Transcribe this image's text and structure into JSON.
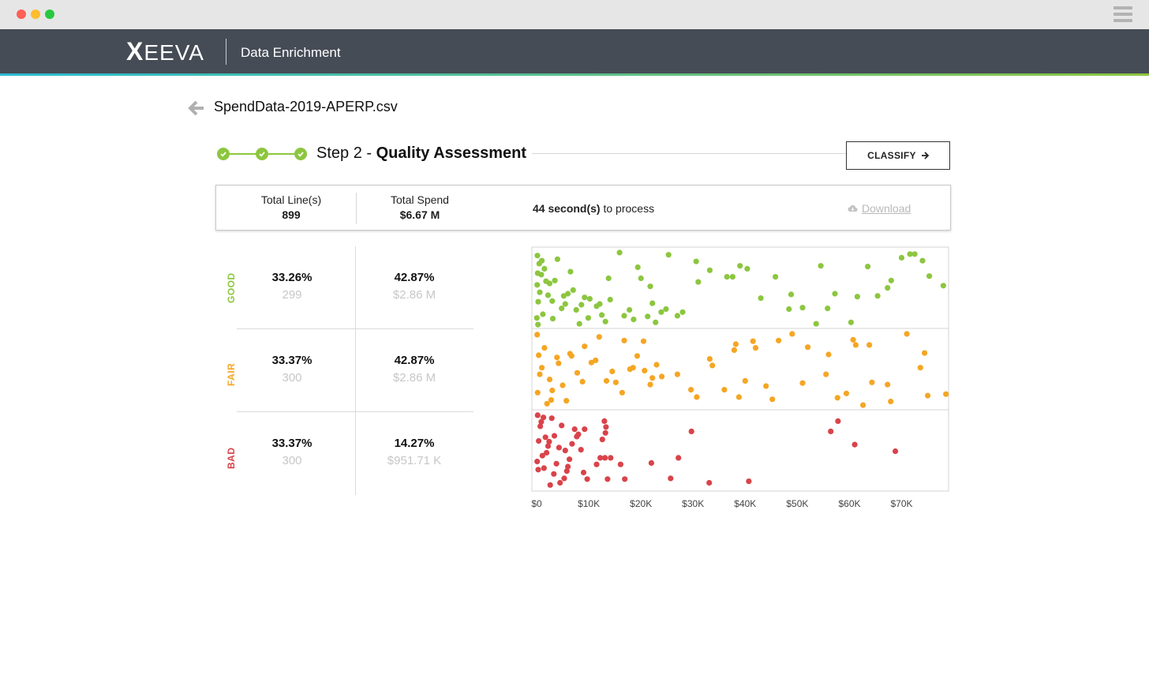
{
  "window": {
    "menu_icon": "hamburger-icon"
  },
  "header": {
    "brand": "XEEVA",
    "title": "Data Enrichment"
  },
  "file": {
    "name": "SpendData-2019-APERP.csv"
  },
  "step": {
    "prefix": "Step 2 - ",
    "name": "Quality Assessment",
    "completed_steps": 3
  },
  "actions": {
    "classify_label": "CLASSIFY"
  },
  "summary": {
    "total_lines_label": "Total Line(s)",
    "total_lines_value": "899",
    "total_spend_label": "Total Spend",
    "total_spend_value": "$6.67 M",
    "process_bold": "44 second(s)",
    "process_rest": " to process",
    "download_label": "Download"
  },
  "quality": [
    {
      "label": "GOOD",
      "color": "#8cc63f",
      "pct_lines": "33.26%",
      "count": "299",
      "pct_spend": "42.87%",
      "spend": "$2.86 M"
    },
    {
      "label": "FAIR",
      "color": "#f5a623",
      "pct_lines": "33.37%",
      "count": "300",
      "pct_spend": "42.87%",
      "spend": "$2.86 M"
    },
    {
      "label": "BAD",
      "color": "#d9434a",
      "pct_lines": "33.37%",
      "count": "300",
      "pct_spend": "14.27%",
      "spend": "$951.71 K"
    }
  ],
  "chart_data": {
    "type": "scatter",
    "x_ticks": [
      "$0",
      "$10K",
      "$20K",
      "$30K",
      "$40K",
      "$50K",
      "$60K",
      "$70K"
    ],
    "xlim": [
      0,
      79000
    ],
    "grid": true,
    "series": [
      {
        "group": "GOOD",
        "color": "#8cc63f",
        "x": [
          36500,
          15900,
          13800,
          6000,
          4800,
          8200,
          12500,
          5200,
          14100,
          20000,
          21800,
          19400,
          25300,
          30600,
          31000,
          33200,
          37600,
          39000,
          40400,
          43000,
          45800,
          48800,
          48400,
          51000,
          53600,
          55800,
          57200,
          60300,
          61500,
          63500,
          67300,
          68000,
          70000,
          71600,
          72500,
          74000,
          75300,
          78000,
          65400,
          54500,
          28000,
          27000,
          24800,
          23900,
          22200,
          11500,
          10200,
          9200,
          8600,
          7600,
          4000,
          3000,
          2200,
          1800,
          1200,
          900,
          500,
          300,
          200,
          150,
          100,
          50,
          1500,
          2500,
          3500,
          5500,
          6500,
          7000,
          12100,
          17800,
          16800,
          18600,
          21300,
          22800,
          9900,
          13200,
          3100,
          1000,
          600,
          250
        ],
        "y": [
          6.6,
          9.9,
          6.4,
          4.3,
          2.3,
          0.2,
          1.4,
          4.0,
          3.5,
          6.4,
          5.3,
          7.9,
          9.6,
          8.7,
          5.9,
          7.5,
          6.6,
          8.1,
          7.7,
          3.7,
          6.6,
          4.2,
          2.2,
          2.4,
          0.2,
          2.3,
          4.3,
          0.4,
          3.9,
          8.0,
          5.1,
          6.1,
          9.2,
          9.7,
          9.7,
          8.8,
          6.7,
          5.4,
          4.0,
          8.1,
          1.8,
          1.3,
          2.2,
          1.8,
          3.0,
          2.6,
          3.6,
          3.8,
          2.8,
          2.1,
          9.0,
          3.3,
          4.1,
          6.0,
          1.5,
          6.9,
          8.4,
          3.2,
          7.1,
          9.5,
          5.5,
          1.0,
          7.7,
          5.7,
          6.1,
          2.9,
          7.3,
          4.8,
          2.9,
          2.1,
          1.3,
          0.8,
          1.2,
          0.4,
          1.0,
          0.5,
          0.9,
          8.8,
          4.5,
          0.1
        ],
        "y_range": [
          0,
          10
        ]
      },
      {
        "group": "FAIR",
        "color": "#f5a623",
        "x": [
          42000,
          56000,
          61200,
          63800,
          67300,
          71000,
          74400,
          75000,
          78500,
          33700,
          37900,
          38200,
          40000,
          41500,
          44000,
          45200,
          49000,
          51000,
          52000,
          55500,
          57700,
          59400,
          60700,
          62600,
          64300,
          67900,
          73600,
          27000,
          24000,
          23000,
          21800,
          20500,
          19300,
          17900,
          16800,
          15200,
          13400,
          12000,
          10500,
          9200,
          7800,
          6400,
          5000,
          3900,
          2500,
          1500,
          600,
          200,
          100,
          3000,
          4200,
          5700,
          8800,
          11300,
          14500,
          16400,
          22200,
          30700,
          33200,
          46400,
          36000,
          38800,
          29600,
          20700,
          18500,
          2000,
          1000,
          400,
          2800,
          6700
        ],
        "y": [
          8.0,
          7.1,
          8.4,
          8.4,
          3.0,
          9.9,
          7.3,
          1.5,
          1.7,
          5.6,
          7.7,
          8.5,
          3.5,
          8.9,
          2.8,
          1.0,
          9.9,
          3.2,
          8.1,
          4.4,
          1.2,
          1.8,
          9.1,
          0.2,
          3.3,
          0.7,
          5.3,
          4.4,
          4.1,
          5.7,
          3.0,
          8.9,
          6.9,
          5.1,
          9.0,
          3.3,
          3.5,
          9.5,
          6.0,
          8.2,
          4.6,
          7.2,
          2.9,
          6.7,
          3.7,
          8.0,
          4.4,
          1.9,
          9.8,
          2.2,
          5.9,
          0.8,
          3.4,
          6.3,
          4.8,
          1.9,
          3.9,
          1.3,
          6.5,
          9.0,
          2.3,
          1.3,
          2.3,
          4.9,
          5.3,
          0.4,
          5.3,
          7.0,
          0.9,
          6.9
        ],
        "y_range": [
          0,
          10
        ]
      },
      {
        "group": "BAD",
        "color": "#d9434a",
        "x": [
          13000,
          13300,
          13200,
          12600,
          13100,
          14200,
          16100,
          16900,
          13600,
          11500,
          12200,
          9700,
          9000,
          8500,
          8000,
          7300,
          6800,
          6300,
          5800,
          5300,
          4800,
          4300,
          3800,
          3400,
          2900,
          2400,
          1900,
          1400,
          900,
          400,
          100,
          27200,
          25700,
          22000,
          29700,
          33100,
          40700,
          56400,
          57800,
          61000,
          68800,
          4500,
          3300,
          2200,
          1100,
          700,
          200,
          5500,
          6000,
          9200,
          7700,
          2600,
          1700,
          1300,
          300
        ],
        "y": [
          9.1,
          8.3,
          7.5,
          6.6,
          4.1,
          4.1,
          3.2,
          1.2,
          1.2,
          3.2,
          4.1,
          1.2,
          2.1,
          5.2,
          7.3,
          8.0,
          6.0,
          3.9,
          2.3,
          1.3,
          8.5,
          5.5,
          3.3,
          7.1,
          9.5,
          6.3,
          4.8,
          2.7,
          9.0,
          6.4,
          3.6,
          4.1,
          1.3,
          3.4,
          7.7,
          0.7,
          0.9,
          7.7,
          9.1,
          5.9,
          5.0,
          0.7,
          1.9,
          5.7,
          4.4,
          8.4,
          9.9,
          5.1,
          2.9,
          8.0,
          7.0,
          0.4,
          6.9,
          9.6,
          2.5
        ],
        "y_range": [
          0,
          10
        ]
      }
    ]
  }
}
